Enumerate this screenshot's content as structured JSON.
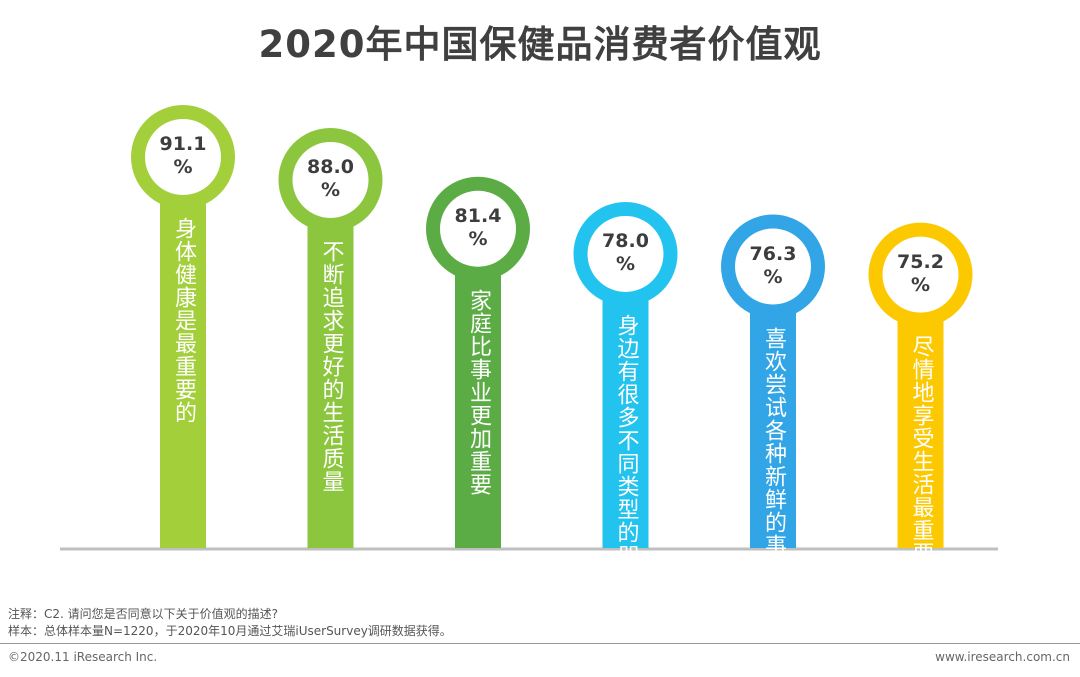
{
  "chart_data": {
    "type": "bar",
    "title": "2020年中国保健品消费者价值观",
    "categories": [
      "身体健康是最重要的",
      "不断追求更好的生活质量",
      "家庭比事业更加重要",
      "身边有很多不同类型的朋友",
      "喜欢尝试各种新鲜的事物",
      "尽情地享受生活最重要"
    ],
    "values": [
      91.1,
      88.0,
      81.4,
      78.0,
      76.3,
      75.2
    ],
    "value_labels": [
      "91.1",
      "88.0",
      "81.4",
      "78.0",
      "76.3",
      "75.2"
    ],
    "unit": "%",
    "colors": [
      "#a3cf3b",
      "#8cc63f",
      "#5cac45",
      "#22c3ee",
      "#31a5e6",
      "#fcc800"
    ],
    "ylim": [
      0,
      100
    ],
    "xlabel": "",
    "ylabel": "",
    "grid": false,
    "legend": "none"
  },
  "footer": {
    "note": "注释：C2. 请问您是否同意以下关于价值观的描述?",
    "sample": "样本：总体样本量N=1220，于2020年10月通过艾瑞iUserSurvey调研数据获得。",
    "copyright": "©2020.11 iResearch Inc.",
    "website": "www.iresearch.com.cn"
  }
}
